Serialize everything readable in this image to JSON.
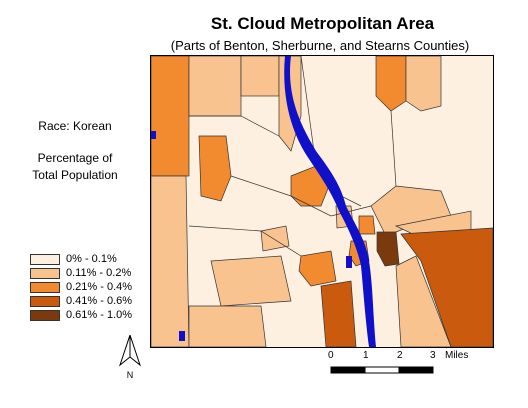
{
  "title": "St. Cloud Metropolitan Area",
  "subtitle": "(Parts of Benton, Sherburne, and Stearns Counties)",
  "variable_label": "Race: Korean",
  "measure_label_line1": "Percentage of",
  "measure_label_line2": "Total Population",
  "legend": [
    {
      "label": "0% - 0.1%",
      "color": "#fdf0e0"
    },
    {
      "label": "0.11% - 0.2%",
      "color": "#f9c38f"
    },
    {
      "label": "0.21% - 0.4%",
      "color": "#f28a30"
    },
    {
      "label": "0.41% - 0.6%",
      "color": "#c95a0e"
    },
    {
      "label": "0.61% - 1.0%",
      "color": "#7a3a0d"
    }
  ],
  "scale_bar": {
    "ticks": [
      "0",
      "1",
      "2",
      "3"
    ],
    "unit": "Miles"
  },
  "north_arrow_label": "N",
  "colors": {
    "water": "#1010c8",
    "boundary": "#333333"
  }
}
